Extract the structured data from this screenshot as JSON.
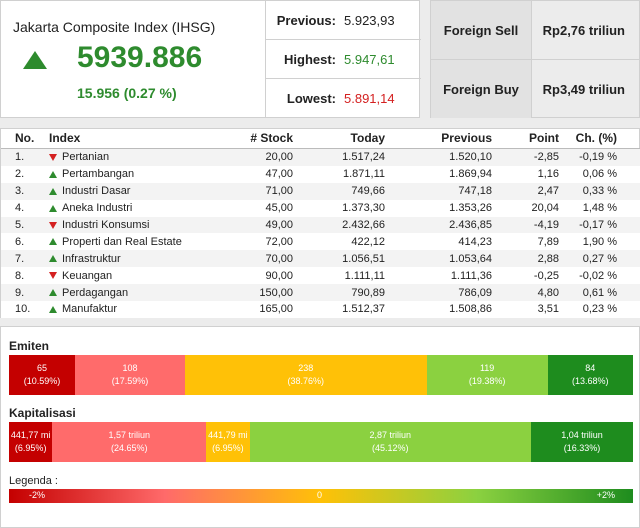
{
  "index": {
    "title": "Jakarta Composite Index (IHSG)",
    "value": "5939.886",
    "change": "15.956 (0.27 %)",
    "previous_label": "Previous:",
    "previous": "5.923,93",
    "highest_label": "Highest:",
    "highest": "5.947,61",
    "lowest_label": "Lowest:",
    "lowest": "5.891,14"
  },
  "foreign": {
    "sell_label": "Foreign Sell",
    "sell": "Rp2,76 triliun",
    "buy_label": "Foreign Buy",
    "buy": "Rp3,49 triliun"
  },
  "table": {
    "headers": [
      "No.",
      "Index",
      "# Stock",
      "Today",
      "Previous",
      "Point",
      "Ch. (%)"
    ],
    "rows": [
      {
        "no": "1.",
        "name": "Pertanian",
        "dir": "down",
        "stock": "20,00",
        "today": "1.517,24",
        "prev": "1.520,10",
        "point": "-2,85",
        "ch": "-0,19 %"
      },
      {
        "no": "2.",
        "name": "Pertambangan",
        "dir": "up",
        "stock": "47,00",
        "today": "1.871,11",
        "prev": "1.869,94",
        "point": "1,16",
        "ch": "0,06 %"
      },
      {
        "no": "3.",
        "name": "Industri Dasar",
        "dir": "up",
        "stock": "71,00",
        "today": "749,66",
        "prev": "747,18",
        "point": "2,47",
        "ch": "0,33 %"
      },
      {
        "no": "4.",
        "name": "Aneka Industri",
        "dir": "up",
        "stock": "45,00",
        "today": "1.373,30",
        "prev": "1.353,26",
        "point": "20,04",
        "ch": "1,48 %"
      },
      {
        "no": "5.",
        "name": "Industri Konsumsi",
        "dir": "down",
        "stock": "49,00",
        "today": "2.432,66",
        "prev": "2.436,85",
        "point": "-4,19",
        "ch": "-0,17 %"
      },
      {
        "no": "6.",
        "name": "Properti dan Real Estate",
        "dir": "up",
        "stock": "72,00",
        "today": "422,12",
        "prev": "414,23",
        "point": "7,89",
        "ch": "1,90 %"
      },
      {
        "no": "7.",
        "name": "Infrastruktur",
        "dir": "up",
        "stock": "70,00",
        "today": "1.056,51",
        "prev": "1.053,64",
        "point": "2,88",
        "ch": "0,27 %"
      },
      {
        "no": "8.",
        "name": "Keuangan",
        "dir": "down",
        "stock": "90,00",
        "today": "1.111,11",
        "prev": "1.111,36",
        "point": "-0,25",
        "ch": "-0,02 %"
      },
      {
        "no": "9.",
        "name": "Perdagangan",
        "dir": "up",
        "stock": "150,00",
        "today": "790,89",
        "prev": "786,09",
        "point": "4,80",
        "ch": "0,61 %"
      },
      {
        "no": "10.",
        "name": "Manufaktur",
        "dir": "up",
        "stock": "165,00",
        "today": "1.512,37",
        "prev": "1.508,86",
        "point": "3,51",
        "ch": "0,23 %"
      }
    ]
  },
  "emiten": {
    "title": "Emiten",
    "segments": [
      {
        "value": "65",
        "pct": "(10.59%)",
        "share": 10.59,
        "color": "#c40000"
      },
      {
        "value": "108",
        "pct": "(17.59%)",
        "share": 17.59,
        "color": "#ff6b6b"
      },
      {
        "value": "238",
        "pct": "(38.76%)",
        "share": 38.76,
        "color": "#ffc107"
      },
      {
        "value": "119",
        "pct": "(19.38%)",
        "share": 19.38,
        "color": "#8bd140"
      },
      {
        "value": "84",
        "pct": "(13.68%)",
        "share": 13.68,
        "color": "#1e8c1e"
      }
    ]
  },
  "kapitalisasi": {
    "title": "Kapitalisasi",
    "segments": [
      {
        "value": "441,77 mi",
        "pct": "(6.95%)",
        "share": 6.95,
        "color": "#c40000"
      },
      {
        "value": "1,57 triliun",
        "pct": "(24.65%)",
        "share": 24.65,
        "color": "#ff6b6b"
      },
      {
        "value": "441,79 mi",
        "pct": "(6.95%)",
        "share": 6.95,
        "color": "#ffc107"
      },
      {
        "value": "2,87 triliun",
        "pct": "(45.12%)",
        "share": 45.12,
        "color": "#8bd140"
      },
      {
        "value": "1,04 triliun",
        "pct": "(16.33%)",
        "share": 16.33,
        "color": "#1e8c1e"
      }
    ]
  },
  "legend": {
    "title": "Legenda :",
    "min": "-2%",
    "mid": "0",
    "max": "+2%"
  }
}
